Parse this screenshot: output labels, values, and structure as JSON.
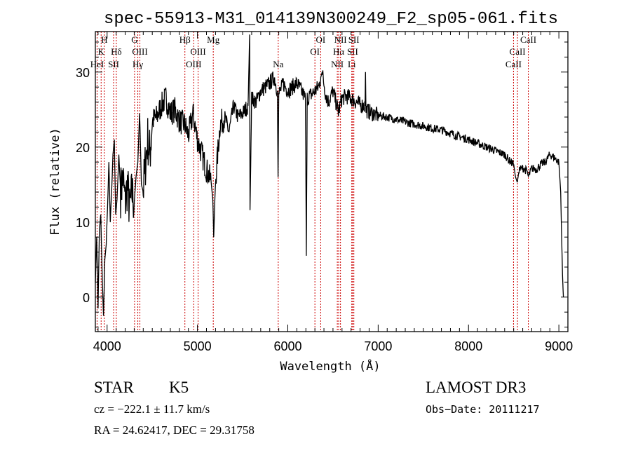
{
  "chart_data": {
    "type": "line",
    "title": "spec-55913-M31_014139N300249_F2_sp05-061.fits",
    "xlabel": "Wavelength (Å)",
    "ylabel": "Flux (relative)",
    "xlim": [
      3870,
      9100
    ],
    "ylim": [
      -4.6,
      35.4
    ],
    "xticks": [
      4000,
      5000,
      6000,
      7000,
      8000,
      9000
    ],
    "yticks": [
      0,
      10,
      20,
      30
    ],
    "grid": false,
    "line_color": "#000000",
    "marker_color": "#cc0000",
    "series": [
      {
        "name": "spectrum",
        "points": [
          [
            3870,
            2
          ],
          [
            3885,
            8
          ],
          [
            3900,
            -1.5
          ],
          [
            3915,
            9
          ],
          [
            3930,
            11
          ],
          [
            3945,
            3
          ],
          [
            3960,
            -2.5
          ],
          [
            3975,
            5
          ],
          [
            3990,
            7
          ],
          [
            4005,
            12
          ],
          [
            4020,
            18
          ],
          [
            4035,
            10
          ],
          [
            4050,
            14
          ],
          [
            4065,
            19
          ],
          [
            4080,
            21
          ],
          [
            4095,
            11
          ],
          [
            4110,
            13
          ],
          [
            4130,
            19
          ],
          [
            4150,
            14
          ],
          [
            4175,
            16
          ],
          [
            4200,
            12.5
          ],
          [
            4225,
            15
          ],
          [
            4250,
            11.5
          ],
          [
            4275,
            14
          ],
          [
            4300,
            12.5
          ],
          [
            4320,
            16
          ],
          [
            4340,
            18
          ],
          [
            4360,
            24.5
          ],
          [
            4380,
            15
          ],
          [
            4400,
            14
          ],
          [
            4425,
            18
          ],
          [
            4450,
            21
          ],
          [
            4475,
            19
          ],
          [
            4500,
            23.5
          ],
          [
            4550,
            24
          ],
          [
            4600,
            25.5
          ],
          [
            4650,
            26.5
          ],
          [
            4700,
            24.5
          ],
          [
            4750,
            25
          ],
          [
            4800,
            23.5
          ],
          [
            4860,
            23
          ],
          [
            4900,
            21.5
          ],
          [
            4950,
            24.5
          ],
          [
            5000,
            21
          ],
          [
            5050,
            19
          ],
          [
            5100,
            17
          ],
          [
            5150,
            15.5
          ],
          [
            5170,
            13
          ],
          [
            5180,
            8
          ],
          [
            5190,
            12
          ],
          [
            5200,
            15.5
          ],
          [
            5250,
            23
          ],
          [
            5300,
            24
          ],
          [
            5350,
            22
          ],
          [
            5400,
            25.5
          ],
          [
            5450,
            24
          ],
          [
            5500,
            24.5
          ],
          [
            5560,
            25.5
          ],
          [
            5578,
            35
          ],
          [
            5582,
            11.6
          ],
          [
            5600,
            26.5
          ],
          [
            5650,
            26
          ],
          [
            5700,
            27.5
          ],
          [
            5750,
            28
          ],
          [
            5800,
            28.5
          ],
          [
            5850,
            29.3
          ],
          [
            5885,
            27.5
          ],
          [
            5892,
            16
          ],
          [
            5900,
            27
          ],
          [
            5950,
            28.5
          ],
          [
            6000,
            27.5
          ],
          [
            6050,
            28
          ],
          [
            6100,
            28.5
          ],
          [
            6150,
            27.5
          ],
          [
            6195,
            26.5
          ],
          [
            6205,
            5.5
          ],
          [
            6215,
            26.5
          ],
          [
            6300,
            27.5
          ],
          [
            6340,
            28
          ],
          [
            6365,
            29.3
          ],
          [
            6380,
            30
          ],
          [
            6420,
            27
          ],
          [
            6450,
            26
          ],
          [
            6500,
            27.5
          ],
          [
            6560,
            24.7
          ],
          [
            6600,
            26.5
          ],
          [
            6650,
            26.8
          ],
          [
            6700,
            26.5
          ],
          [
            6760,
            26
          ],
          [
            6800,
            25.6
          ],
          [
            6855,
            25.5
          ],
          [
            6860,
            30
          ],
          [
            6865,
            25
          ],
          [
            6900,
            24.7
          ],
          [
            7000,
            24.2
          ],
          [
            7100,
            24
          ],
          [
            7200,
            23.7
          ],
          [
            7350,
            23.2
          ],
          [
            7500,
            22.8
          ],
          [
            7600,
            22.5
          ],
          [
            7700,
            22.3
          ],
          [
            7850,
            21.6
          ],
          [
            8000,
            21
          ],
          [
            8100,
            20.5
          ],
          [
            8200,
            20
          ],
          [
            8300,
            19.5
          ],
          [
            8400,
            19
          ],
          [
            8450,
            18.2
          ],
          [
            8500,
            17.7
          ],
          [
            8520,
            16
          ],
          [
            8540,
            15.3
          ],
          [
            8560,
            17
          ],
          [
            8600,
            17.2
          ],
          [
            8650,
            16.8
          ],
          [
            8662,
            16
          ],
          [
            8700,
            17.2
          ],
          [
            8750,
            17
          ],
          [
            8800,
            17.7
          ],
          [
            8850,
            18
          ],
          [
            8900,
            19
          ],
          [
            8950,
            18.6
          ],
          [
            9000,
            18
          ],
          [
            9020,
            14
          ],
          [
            9040,
            3
          ],
          [
            9050,
            0
          ]
        ]
      }
    ],
    "line_markers": [
      {
        "wl": 3889,
        "label": "HeI",
        "row": 3
      },
      {
        "wl": 3934,
        "label": "K",
        "row": 2
      },
      {
        "wl": 3969,
        "label": "H",
        "row": 1
      },
      {
        "wl": 4072,
        "label": "SII",
        "row": 3
      },
      {
        "wl": 4102,
        "label": "Hδ",
        "row": 2
      },
      {
        "wl": 4304,
        "label": "G",
        "row": 1
      },
      {
        "wl": 4340,
        "label": "Hγ",
        "row": 3
      },
      {
        "wl": 4363,
        "label": "OIII",
        "row": 2
      },
      {
        "wl": 4861,
        "label": "Hβ",
        "row": 1
      },
      {
        "wl": 4959,
        "label": "OIII",
        "row": 3
      },
      {
        "wl": 5007,
        "label": "OIII",
        "row": 2
      },
      {
        "wl": 5175,
        "label": "Mg",
        "row": 1
      },
      {
        "wl": 5894,
        "label": "Na",
        "row": 3
      },
      {
        "wl": 6300,
        "label": "OI",
        "row": 2
      },
      {
        "wl": 6364,
        "label": "OI",
        "row": 1
      },
      {
        "wl": 6548,
        "label": "NII",
        "row": 3
      },
      {
        "wl": 6563,
        "label": "Hα",
        "row": 2
      },
      {
        "wl": 6583,
        "label": "NII",
        "row": 1
      },
      {
        "wl": 6708,
        "label": "Li",
        "row": 3
      },
      {
        "wl": 6717,
        "label": "SII",
        "row": 2
      },
      {
        "wl": 6731,
        "label": "SII",
        "row": 1
      },
      {
        "wl": 8498,
        "label": "CaII",
        "row": 3
      },
      {
        "wl": 8542,
        "label": "CaII",
        "row": 2
      },
      {
        "wl": 8662,
        "label": "CaII",
        "row": 1
      }
    ]
  },
  "info": {
    "object_class": "STAR",
    "subclass": "K5",
    "survey": "LAMOST DR3",
    "cz": "cz = −222.1 ± 11.7 km/s",
    "obs_date": "Obs−Date: 20111217",
    "coords": "RA =  24.62417, DEC =  29.31758"
  }
}
